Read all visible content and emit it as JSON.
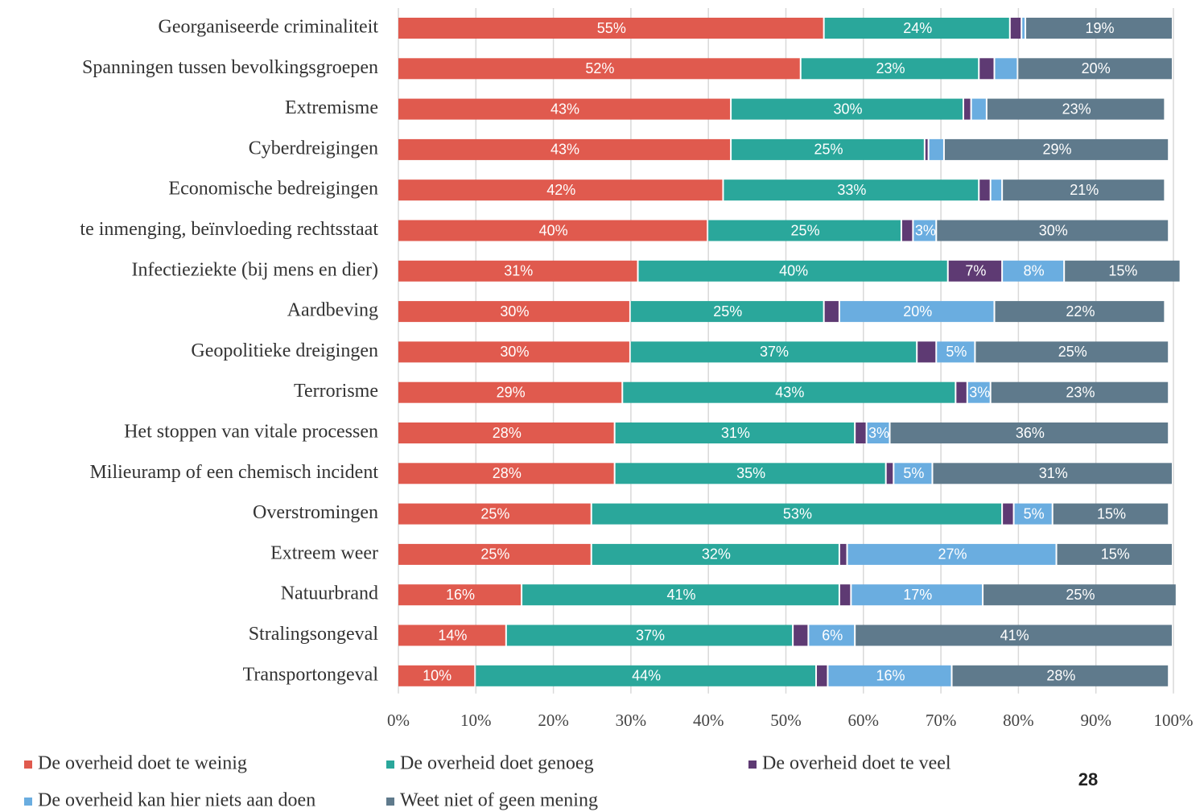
{
  "chart_data": {
    "type": "stacked_bar_horizontal",
    "categories": [
      "Georganiseerde criminaliteit",
      "Spanningen tussen bevolkingsgroepen",
      "Extremisme",
      "Cyberdreigingen",
      "Economische bedreigingen",
      "te inmenging, beïnvloeding rechtsstaat",
      "Infectieziekte (bij mens en dier)",
      "Aardbeving",
      "Geopolitieke dreigingen",
      "Terrorisme",
      "Het stoppen van vitale processen",
      "Milieuramp of een chemisch incident",
      "Overstromingen",
      "Extreem weer",
      "Natuurbrand",
      "Stralingsongeval",
      "Transportongeval"
    ],
    "series": [
      {
        "name": "De overheid doet te weinig",
        "color": "#e05a4e",
        "values": [
          55,
          52,
          43,
          43,
          42,
          40,
          31,
          30,
          30,
          29,
          28,
          28,
          25,
          25,
          16,
          14,
          10
        ],
        "value_labels": [
          "55%",
          "52%",
          "43%",
          "43%",
          "42%",
          "40%",
          "31%",
          "30%",
          "30%",
          "29%",
          "28%",
          "28%",
          "25%",
          "25%",
          "16%",
          "14%",
          "10%"
        ]
      },
      {
        "name": "De overheid doet genoeg",
        "color": "#2aa79b",
        "values": [
          24,
          23,
          30,
          25,
          33,
          25,
          40,
          25,
          37,
          43,
          31,
          35,
          53,
          32,
          41,
          37,
          44
        ],
        "value_labels": [
          "24%",
          "23%",
          "30%",
          "25%",
          "33%",
          "25%",
          "40%",
          "25%",
          "37%",
          "43%",
          "31%",
          "35%",
          "53%",
          "32%",
          "41%",
          "37%",
          "44%"
        ]
      },
      {
        "name": "De overheid doet te veel",
        "color": "#5e3a73",
        "values": [
          1.5,
          2,
          1,
          0.5,
          1.5,
          1.5,
          7,
          2,
          2.5,
          1.5,
          1.5,
          1,
          1.5,
          1,
          1.5,
          2,
          1.5
        ],
        "value_labels": [
          null,
          null,
          null,
          null,
          null,
          null,
          "7%",
          null,
          null,
          null,
          null,
          null,
          null,
          null,
          null,
          null,
          null
        ]
      },
      {
        "name": "De overheid kan hier niets aan doen",
        "color": "#6aade0",
        "values": [
          0.5,
          3,
          2,
          2,
          1.5,
          3,
          8,
          20,
          5,
          3,
          3,
          5,
          5,
          27,
          17,
          6,
          16
        ],
        "value_labels": [
          null,
          null,
          null,
          null,
          null,
          "3%",
          "8%",
          "20%",
          "5%",
          "3%",
          "3%",
          "5%",
          "5%",
          "27%",
          "17%",
          "6%",
          "16%"
        ]
      },
      {
        "name": "Weet niet of geen mening",
        "color": "#5f7a8c",
        "values": [
          19,
          20,
          23,
          29,
          21,
          30,
          15,
          22,
          25,
          23,
          36,
          31,
          15,
          15,
          25,
          41,
          28
        ],
        "value_labels": [
          "19%",
          "20%",
          "23%",
          "29%",
          "21%",
          "30%",
          "15%",
          "22%",
          "25%",
          "23%",
          "36%",
          "31%",
          "15%",
          "15%",
          "25%",
          "41%",
          "28%"
        ]
      }
    ],
    "xlim": [
      0,
      100
    ],
    "xticks": [
      {
        "value": 0,
        "label": "0%"
      },
      {
        "value": 10,
        "label": "10%"
      },
      {
        "value": 20,
        "label": "20%"
      },
      {
        "value": 30,
        "label": "30%"
      },
      {
        "value": 40,
        "label": "40%"
      },
      {
        "value": 50,
        "label": "50%"
      },
      {
        "value": 60,
        "label": "60%"
      },
      {
        "value": 70,
        "label": "70%"
      },
      {
        "value": 80,
        "label": "80%"
      },
      {
        "value": 90,
        "label": "90%"
      },
      {
        "value": 100,
        "label": "100%"
      }
    ],
    "grid": true,
    "legend": "bottom",
    "page_number": "28"
  }
}
